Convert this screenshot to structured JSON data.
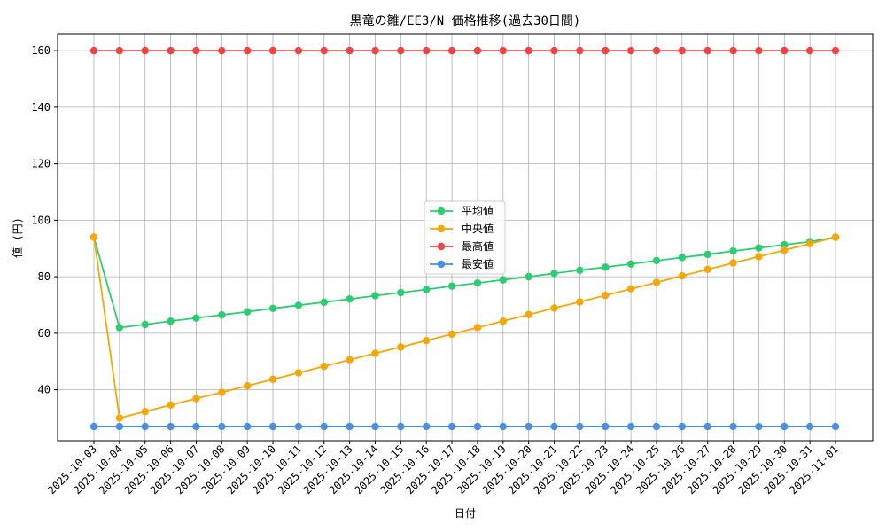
{
  "chart_data": {
    "type": "line",
    "title": "黒竜の雛/EE3/N 価格推移(過去30日間)",
    "xlabel": "日付",
    "ylabel": "値 (円)",
    "ylim": [
      22,
      166
    ],
    "yticks": [
      40,
      60,
      80,
      100,
      120,
      140,
      160
    ],
    "grid": true,
    "legend_position": "center",
    "x": [
      "2025-10-03",
      "2025-10-04",
      "2025-10-05",
      "2025-10-06",
      "2025-10-07",
      "2025-10-08",
      "2025-10-09",
      "2025-10-10",
      "2025-10-11",
      "2025-10-12",
      "2025-10-13",
      "2025-10-14",
      "2025-10-15",
      "2025-10-16",
      "2025-10-17",
      "2025-10-18",
      "2025-10-19",
      "2025-10-20",
      "2025-10-21",
      "2025-10-22",
      "2025-10-23",
      "2025-10-24",
      "2025-10-25",
      "2025-10-26",
      "2025-10-27",
      "2025-10-28",
      "2025-10-29",
      "2025-10-30",
      "2025-10-31",
      "2025-11-01"
    ],
    "series": [
      {
        "name": "平均値",
        "color": "#2ecc71",
        "values": [
          94,
          62,
          63.1,
          64.3,
          65.4,
          66.5,
          67.6,
          68.8,
          69.9,
          71.0,
          72.1,
          73.3,
          74.4,
          75.5,
          76.7,
          77.8,
          78.9,
          80.0,
          81.2,
          82.3,
          83.4,
          84.5,
          85.7,
          86.8,
          87.9,
          89.1,
          90.2,
          91.3,
          92.4,
          94
        ]
      },
      {
        "name": "中央値",
        "color": "#f5a70a",
        "values": [
          94,
          30,
          32.3,
          34.6,
          36.9,
          39.1,
          41.4,
          43.7,
          46.0,
          48.3,
          50.6,
          52.9,
          55.1,
          57.4,
          59.7,
          62.0,
          64.3,
          66.6,
          68.9,
          71.1,
          73.4,
          75.7,
          78.0,
          80.3,
          82.6,
          84.9,
          87.1,
          89.4,
          91.7,
          94
        ]
      },
      {
        "name": "最高値",
        "color": "#ef4444",
        "values": [
          160,
          160,
          160,
          160,
          160,
          160,
          160,
          160,
          160,
          160,
          160,
          160,
          160,
          160,
          160,
          160,
          160,
          160,
          160,
          160,
          160,
          160,
          160,
          160,
          160,
          160,
          160,
          160,
          160,
          160
        ]
      },
      {
        "name": "最安値",
        "color": "#4a90e2",
        "values": [
          27,
          27,
          27,
          27,
          27,
          27,
          27,
          27,
          27,
          27,
          27,
          27,
          27,
          27,
          27,
          27,
          27,
          27,
          27,
          27,
          27,
          27,
          27,
          27,
          27,
          27,
          27,
          27,
          27,
          27
        ]
      }
    ]
  }
}
